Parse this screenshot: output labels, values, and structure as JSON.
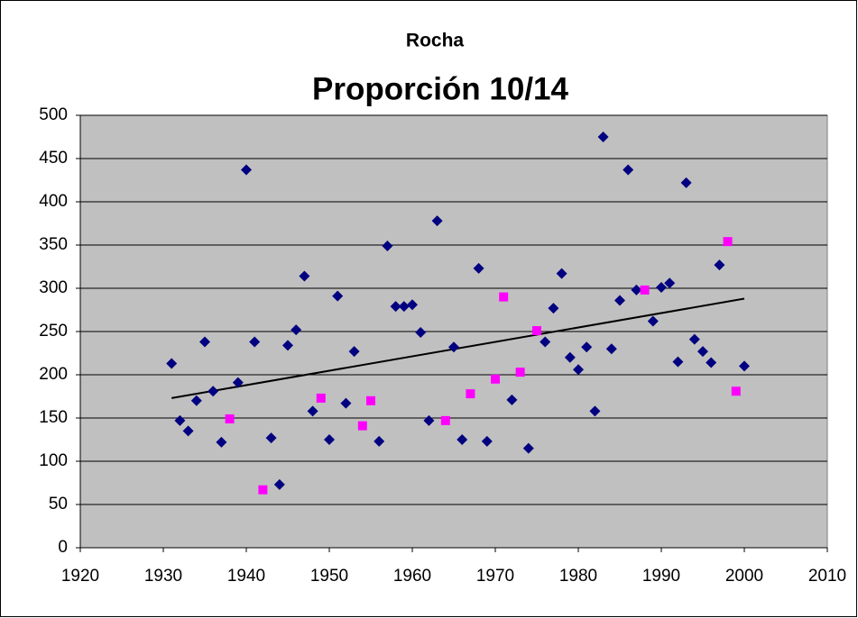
{
  "chart_data": {
    "type": "scatter",
    "title": "Rocha",
    "subtitle": "Proporción 10/14",
    "series": [
      {
        "color": "#000080",
        "marker": "diamond",
        "x": [
          1931,
          1932,
          1933,
          1934,
          1935,
          1936,
          1937,
          1939,
          1940,
          1941,
          1943,
          1944,
          1945,
          1946,
          1947,
          1948,
          1950,
          1951,
          1952,
          1953,
          1956,
          1957,
          1958,
          1959,
          1960,
          1961,
          1962,
          1963,
          1965,
          1966,
          1968,
          1969,
          1972,
          1974,
          1976,
          1977,
          1978,
          1979,
          1980,
          1981,
          1982,
          1983,
          1984,
          1985,
          1986,
          1987,
          1989,
          1990,
          1991,
          1992,
          1993,
          1994,
          1995,
          1996,
          1997,
          2000
        ],
        "values": [
          213,
          147,
          135,
          170,
          238,
          181,
          122,
          191,
          437,
          238,
          127,
          73,
          234,
          252,
          314,
          158,
          125,
          291,
          167,
          227,
          123,
          349,
          279,
          279,
          281,
          249,
          147,
          378,
          232,
          125,
          323,
          123,
          171,
          115,
          238,
          277,
          317,
          220,
          206,
          232,
          158,
          475,
          230,
          286,
          437,
          298,
          262,
          301,
          306,
          215,
          422,
          241,
          227,
          214,
          327,
          210
        ]
      },
      {
        "color": "#ff00ff",
        "marker": "square",
        "x": [
          1938,
          1942,
          1949,
          1954,
          1955,
          1964,
          1967,
          1970,
          1971,
          1973,
          1975,
          1988,
          1998,
          1999
        ],
        "values": [
          149,
          67,
          173,
          141,
          170,
          147,
          178,
          195,
          290,
          203,
          251,
          298,
          354,
          181
        ]
      }
    ],
    "trendline": {
      "x": [
        1931,
        2000
      ],
      "values": [
        173,
        288
      ],
      "color": "#000000"
    },
    "xlim": [
      1920,
      2010
    ],
    "xticks": [
      1920,
      1930,
      1940,
      1950,
      1960,
      1970,
      1980,
      1990,
      2000,
      2010
    ],
    "ylim": [
      0,
      500
    ],
    "yticks": [
      0,
      50,
      100,
      150,
      200,
      250,
      300,
      350,
      400,
      450,
      500
    ],
    "grid": true,
    "plot_background": "#c0c0c0"
  }
}
